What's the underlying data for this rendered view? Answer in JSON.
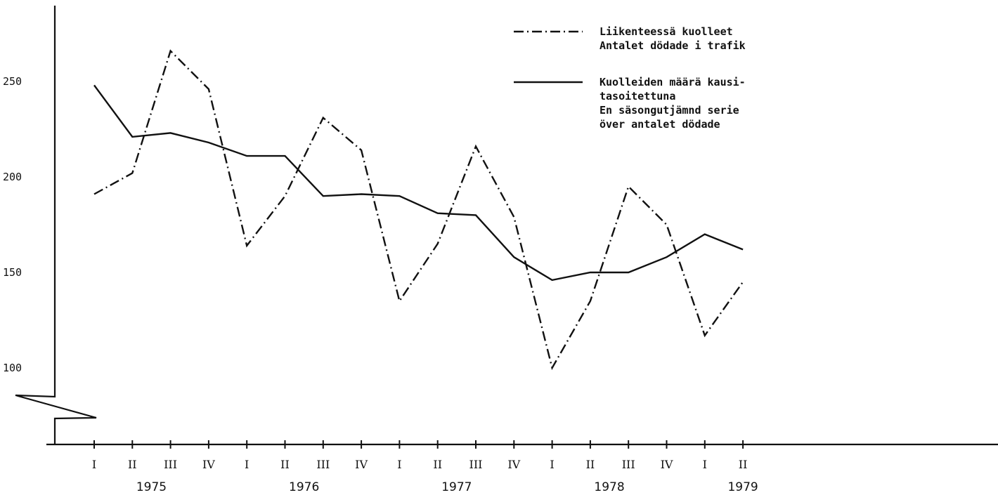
{
  "chart_data": {
    "type": "line",
    "title": "",
    "xlabel": "",
    "ylabel": "",
    "ylim": [
      70,
      275
    ],
    "y_ticks": [
      "100",
      "150",
      "200",
      "250"
    ],
    "quarters": [
      "I",
      "II",
      "III",
      "IV",
      "I",
      "II",
      "III",
      "IV",
      "I",
      "II",
      "III",
      "IV",
      "I",
      "II",
      "III",
      "IV",
      "I",
      "II"
    ],
    "years": [
      "1975",
      "1976",
      "1977",
      "1978",
      "1979"
    ],
    "series": [
      {
        "name": "Liikenteessä kuolleet\nAntalet dödade i trafik",
        "style": "dash-dot",
        "values": [
          191,
          202,
          266,
          246,
          164,
          190,
          231,
          214,
          135,
          165,
          216,
          179,
          100,
          135,
          195,
          175,
          117,
          145
        ]
      },
      {
        "name": "Kuolleiden määrä kausi-\ntasoitettuna\nEn säsongutjämnd serie\növer antalet dödade",
        "style": "solid",
        "values": [
          248,
          221,
          223,
          218,
          211,
          211,
          190,
          191,
          190,
          181,
          180,
          158,
          146,
          150,
          150,
          158,
          170,
          162
        ]
      }
    ],
    "legend_position": "top-right",
    "grid": false
  }
}
